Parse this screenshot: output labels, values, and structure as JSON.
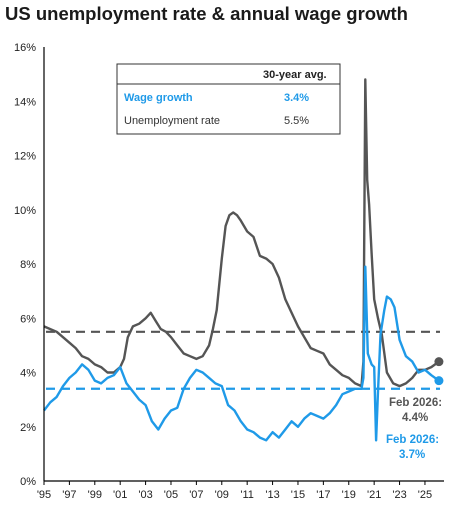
{
  "chart_data": {
    "type": "line",
    "title": "US unemployment rate & annual wage growth",
    "xlabel": "",
    "ylabel": "",
    "ylim": [
      0,
      16
    ],
    "xlim": [
      1995.0,
      2026.5
    ],
    "y_ticks": [
      "0%",
      "2%",
      "4%",
      "6%",
      "8%",
      "10%",
      "12%",
      "14%",
      "16%"
    ],
    "x_ticks": [
      "'95",
      "'97",
      "'99",
      "'01",
      "'03",
      "'05",
      "'07",
      "'09",
      "'11",
      "'13",
      "'15",
      "'17",
      "'19",
      "'21",
      "'23",
      "'25"
    ],
    "colors": {
      "unemployment": "#555555",
      "wage": "#1f9ae8",
      "axis": "#000000"
    },
    "table": {
      "header": "30-year avg.",
      "rows": [
        {
          "label": "Wage growth",
          "value": "3.4%",
          "avg": 3.4
        },
        {
          "label": "Unemployment rate",
          "value": "5.5%",
          "avg": 5.5
        }
      ]
    },
    "callouts": [
      {
        "line1": "Feb 2026:",
        "line2": "4.4%"
      },
      {
        "line1": "Feb 2026:",
        "line2": "3.7%"
      }
    ],
    "series": [
      {
        "key": "unemployment",
        "x": [
          1995.0,
          1995.5,
          1996.0,
          1996.5,
          1997.0,
          1997.5,
          1998.0,
          1998.5,
          1999.0,
          1999.5,
          2000.0,
          2000.5,
          2001.0,
          2001.3,
          2001.6,
          2002.0,
          2002.5,
          2003.0,
          2003.4,
          2003.8,
          2004.2,
          2004.6,
          2005.0,
          2005.5,
          2006.0,
          2006.5,
          2007.0,
          2007.5,
          2008.0,
          2008.3,
          2008.6,
          2009.0,
          2009.3,
          2009.6,
          2009.9,
          2010.2,
          2010.5,
          2011.0,
          2011.5,
          2012.0,
          2012.5,
          2013.0,
          2013.5,
          2014.0,
          2014.5,
          2015.0,
          2015.5,
          2016.0,
          2016.5,
          2017.0,
          2017.5,
          2018.0,
          2018.5,
          2019.0,
          2019.5,
          2020.0,
          2020.15,
          2020.3,
          2020.45,
          2020.6,
          2020.8,
          2021.0,
          2021.3,
          2021.6,
          2022.0,
          2022.5,
          2023.0,
          2023.5,
          2024.0,
          2024.5,
          2025.0,
          2025.5,
          2026.1
        ],
        "values": [
          5.7,
          5.6,
          5.5,
          5.3,
          5.1,
          4.9,
          4.6,
          4.5,
          4.3,
          4.2,
          4.0,
          4.0,
          4.2,
          4.5,
          5.3,
          5.7,
          5.8,
          6.0,
          6.2,
          5.9,
          5.6,
          5.5,
          5.3,
          5.0,
          4.7,
          4.6,
          4.5,
          4.6,
          5.0,
          5.6,
          6.3,
          8.2,
          9.4,
          9.8,
          9.9,
          9.8,
          9.6,
          9.2,
          9.0,
          8.3,
          8.2,
          8.0,
          7.5,
          6.7,
          6.2,
          5.7,
          5.3,
          4.9,
          4.8,
          4.7,
          4.3,
          4.1,
          3.9,
          3.8,
          3.6,
          3.5,
          4.4,
          14.8,
          11.1,
          10.2,
          8.4,
          6.7,
          6.0,
          5.4,
          4.0,
          3.6,
          3.5,
          3.6,
          3.8,
          4.1,
          4.1,
          4.2,
          4.4
        ]
      },
      {
        "key": "wage",
        "x": [
          1995.0,
          1995.5,
          1996.0,
          1996.5,
          1997.0,
          1997.5,
          1998.0,
          1998.5,
          1999.0,
          1999.5,
          2000.0,
          2000.5,
          2001.0,
          2001.5,
          2002.0,
          2002.5,
          2003.0,
          2003.5,
          2004.0,
          2004.5,
          2005.0,
          2005.5,
          2006.0,
          2006.5,
          2007.0,
          2007.5,
          2008.0,
          2008.5,
          2009.0,
          2009.5,
          2010.0,
          2010.5,
          2011.0,
          2011.5,
          2012.0,
          2012.5,
          2013.0,
          2013.5,
          2014.0,
          2014.5,
          2015.0,
          2015.5,
          2016.0,
          2016.5,
          2017.0,
          2017.5,
          2018.0,
          2018.5,
          2019.0,
          2019.5,
          2020.0,
          2020.15,
          2020.3,
          2020.5,
          2020.8,
          2021.0,
          2021.15,
          2021.3,
          2021.5,
          2021.8,
          2022.0,
          2022.3,
          2022.6,
          2023.0,
          2023.5,
          2024.0,
          2024.5,
          2025.0,
          2025.5,
          2026.1
        ],
        "values": [
          2.6,
          2.9,
          3.1,
          3.5,
          3.8,
          4.0,
          4.3,
          4.1,
          3.7,
          3.6,
          3.8,
          3.9,
          4.2,
          3.6,
          3.3,
          3.0,
          2.8,
          2.2,
          1.9,
          2.3,
          2.6,
          2.7,
          3.4,
          3.8,
          4.1,
          4.0,
          3.8,
          3.6,
          3.5,
          2.8,
          2.6,
          2.2,
          1.9,
          1.8,
          1.6,
          1.5,
          1.8,
          1.6,
          1.9,
          2.2,
          2.0,
          2.3,
          2.5,
          2.4,
          2.3,
          2.5,
          2.8,
          3.2,
          3.3,
          3.4,
          3.4,
          3.8,
          7.9,
          4.7,
          4.3,
          4.2,
          1.5,
          3.3,
          5.4,
          6.3,
          6.8,
          6.7,
          6.4,
          5.2,
          4.6,
          4.4,
          4.0,
          4.1,
          3.9,
          3.7
        ]
      }
    ]
  }
}
